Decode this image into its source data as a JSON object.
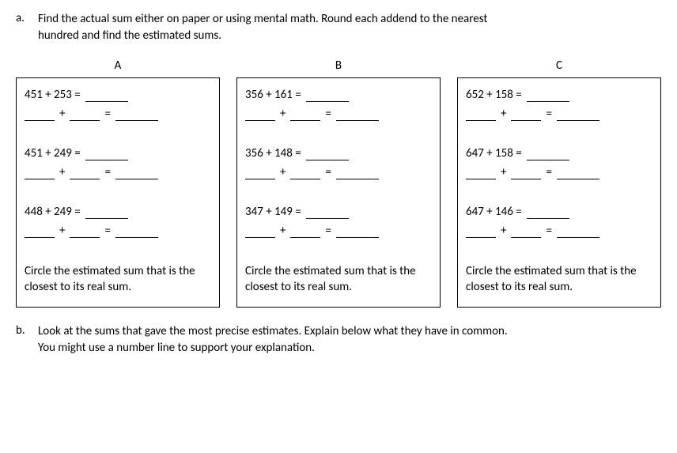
{
  "partA": {
    "letter": "a.",
    "text_line1": "Find the actual sum either on paper or using mental math.  Round each addend to the nearest",
    "text_line2": "hundred and find the estimated sums."
  },
  "columns": {
    "a": "A",
    "b": "B",
    "c": "C"
  },
  "boxA": {
    "p1": "451  +  253  =",
    "p2": "451  +  249  =",
    "p3": "448  +  249  =",
    "circle": "Circle the estimated sum that is the closest to its real sum."
  },
  "boxB": {
    "p1": "356  + 161   =",
    "p2": "356  +  148  =",
    "p3": "347  + 149   =",
    "circle": "Circle the estimated sum that is the closest to its real sum."
  },
  "boxC": {
    "p1": "652  + 158  =",
    "p2": "647  + 158  =",
    "p3": "647  +  146  =",
    "circle": "Circle the estimated sum that is the closest to its real sum."
  },
  "partB": {
    "letter": "b.",
    "text_line1": "Look at the sums that gave the most precise estimates.  Explain below what they have in common.",
    "text_line2": "You might use a number line to support your explanation."
  },
  "plus": "+",
  "equals": "="
}
